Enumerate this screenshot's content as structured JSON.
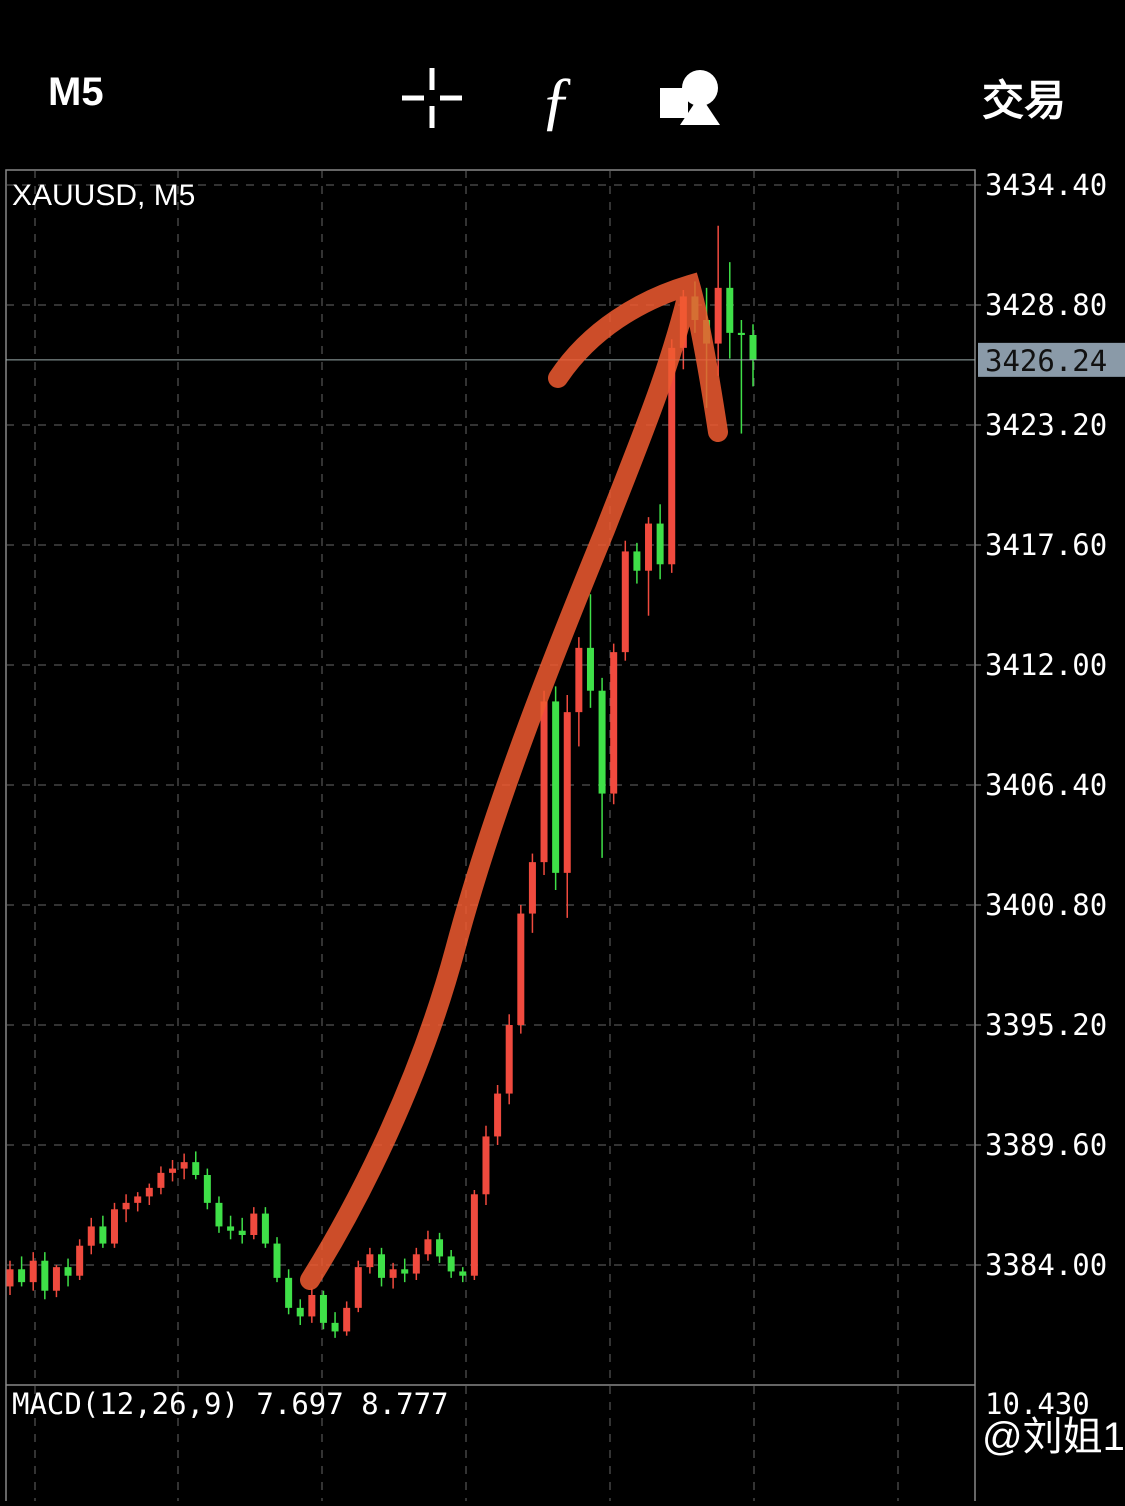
{
  "toolbar": {
    "timeframe": "M5",
    "trade": "交易"
  },
  "chart_data": {
    "type": "candlestick",
    "title": "XAUUSD, M5",
    "up_color": "#f04a3e",
    "down_color": "#3fe048",
    "open": [
      3383.0,
      3383.8,
      3383.2,
      3384.2,
      3382.8,
      3383.9,
      3383.5,
      3384.9,
      3385.8,
      3385.0,
      3386.6,
      3386.9,
      3387.2,
      3387.6,
      3388.3,
      3388.5,
      3388.8,
      3388.2,
      3386.9,
      3385.8,
      3385.6,
      3385.4,
      3386.4,
      3385.0,
      3383.4,
      3382.0,
      3381.6,
      3382.6,
      3381.3,
      3380.9,
      3382.0,
      3383.9,
      3384.5,
      3383.4,
      3383.8,
      3383.6,
      3384.5,
      3385.2,
      3384.4,
      3383.7,
      3383.5,
      3387.3,
      3390.0,
      3392.0,
      3395.2,
      3400.4,
      3402.8,
      3410.3,
      3402.3,
      3409.8,
      3412.8,
      3410.8,
      3406.0,
      3412.6,
      3417.3,
      3416.4,
      3418.6,
      3416.7,
      3426.8,
      3429.2,
      3428.1,
      3427.0,
      3429.6,
      3427.5,
      3427.4
    ],
    "high": [
      3384.2,
      3384.4,
      3384.6,
      3384.6,
      3384.0,
      3384.3,
      3385.2,
      3386.2,
      3386.3,
      3386.9,
      3387.3,
      3387.4,
      3387.8,
      3388.6,
      3388.9,
      3389.2,
      3389.3,
      3388.5,
      3387.2,
      3386.3,
      3386.2,
      3386.7,
      3386.7,
      3385.3,
      3383.8,
      3382.4,
      3382.9,
      3382.8,
      3381.8,
      3382.3,
      3384.2,
      3384.8,
      3384.8,
      3384.1,
      3384.3,
      3384.8,
      3385.6,
      3385.5,
      3384.7,
      3383.9,
      3387.5,
      3390.5,
      3392.4,
      3395.7,
      3400.8,
      3403.2,
      3410.8,
      3411.0,
      3410.6,
      3413.3,
      3415.3,
      3411.4,
      3413.0,
      3417.8,
      3417.7,
      3418.9,
      3419.5,
      3427.2,
      3429.5,
      3429.9,
      3429.6,
      3432.5,
      3430.8,
      3428.1,
      3427.9
    ],
    "low": [
      3382.6,
      3383.0,
      3382.8,
      3382.4,
      3382.5,
      3383.0,
      3383.3,
      3384.5,
      3384.8,
      3384.8,
      3386.0,
      3386.5,
      3386.8,
      3387.3,
      3387.9,
      3388.0,
      3388.0,
      3386.6,
      3385.5,
      3385.2,
      3385.0,
      3385.2,
      3384.8,
      3383.2,
      3381.7,
      3381.2,
      3381.3,
      3381.0,
      3380.6,
      3380.7,
      3381.8,
      3383.6,
      3383.0,
      3382.9,
      3383.2,
      3383.3,
      3384.2,
      3384.1,
      3383.4,
      3383.2,
      3383.3,
      3386.8,
      3389.6,
      3391.5,
      3394.8,
      3399.5,
      3402.2,
      3401.5,
      3400.2,
      3408.2,
      3410.0,
      3403.0,
      3405.5,
      3412.2,
      3415.8,
      3414.3,
      3416.0,
      3416.3,
      3425.8,
      3427.5,
      3424.0,
      3425.5,
      3426.3,
      3422.8,
      3425.0
    ],
    "close": [
      3383.8,
      3383.2,
      3384.2,
      3382.8,
      3383.9,
      3383.5,
      3384.9,
      3385.8,
      3385.0,
      3386.6,
      3386.9,
      3387.2,
      3387.6,
      3388.3,
      3388.5,
      3388.8,
      3388.2,
      3386.9,
      3385.8,
      3385.6,
      3385.4,
      3386.4,
      3385.0,
      3383.4,
      3382.0,
      3381.6,
      3382.6,
      3381.3,
      3380.9,
      3382.0,
      3383.9,
      3384.5,
      3383.4,
      3383.8,
      3383.6,
      3384.5,
      3385.2,
      3384.4,
      3383.7,
      3383.5,
      3387.3,
      3390.0,
      3392.0,
      3395.2,
      3400.4,
      3402.8,
      3410.3,
      3402.3,
      3409.8,
      3412.8,
      3410.8,
      3406.0,
      3412.6,
      3417.3,
      3416.4,
      3418.6,
      3416.7,
      3426.8,
      3429.2,
      3428.1,
      3427.0,
      3429.6,
      3427.5,
      3427.4,
      3426.24
    ],
    "current_price": 3426.24,
    "ylim": [
      3378.4,
      3435.1
    ],
    "yticks": [
      {
        "value": 3434.4,
        "label": "3434.40"
      },
      {
        "value": 3428.8,
        "label": "3428.80"
      },
      {
        "value": 3423.2,
        "label": "3423.20"
      },
      {
        "value": 3417.6,
        "label": "3417.60"
      },
      {
        "value": 3412,
        "label": "3412.00"
      },
      {
        "value": 3406.4,
        "label": "3406.40"
      },
      {
        "value": 3400.8,
        "label": "3400.80"
      },
      {
        "value": 3395.2,
        "label": "3395.20"
      },
      {
        "value": 3389.6,
        "label": "3389.60"
      },
      {
        "value": 3384,
        "label": "3384.00"
      }
    ],
    "grid": true
  },
  "macd": {
    "label": "MACD(12,26,9) 7.697 8.777",
    "axis_top": "10.430"
  },
  "watermark": "@刘姐1"
}
